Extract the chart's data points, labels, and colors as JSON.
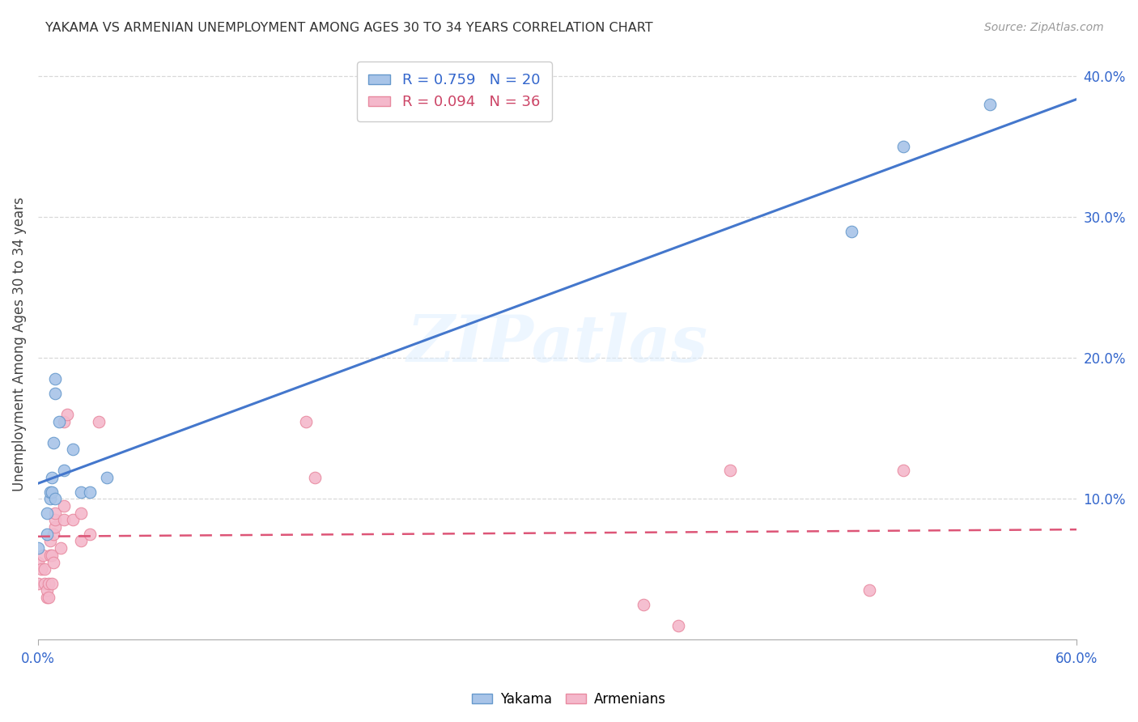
{
  "title": "YAKAMA VS ARMENIAN UNEMPLOYMENT AMONG AGES 30 TO 34 YEARS CORRELATION CHART",
  "source": "Source: ZipAtlas.com",
  "ylabel": "Unemployment Among Ages 30 to 34 years",
  "xlim": [
    0.0,
    0.6
  ],
  "ylim": [
    -0.02,
    0.44
  ],
  "plot_ylim": [
    0.0,
    0.42
  ],
  "xticks": [
    0.0,
    0.6
  ],
  "xtick_labels": [
    "0.0%",
    "60.0%"
  ],
  "yticks_left": [],
  "yticks_right": [
    0.1,
    0.2,
    0.3,
    0.4
  ],
  "ytick_right_labels": [
    "10.0%",
    "20.0%",
    "30.0%",
    "40.0%"
  ],
  "grid_color": "#d8d8d8",
  "background_color": "#ffffff",
  "watermark_text": "ZIPatlas",
  "yakama_color": "#a8c4e8",
  "armenian_color": "#f4b8cb",
  "yakama_edge_color": "#6699cc",
  "armenian_edge_color": "#e88aa0",
  "yakama_line_color": "#4477cc",
  "armenian_line_color": "#dd5577",
  "R_yakama": 0.759,
  "N_yakama": 20,
  "R_armenian": 0.094,
  "N_armenian": 36,
  "yakama_x": [
    0.0,
    0.005,
    0.005,
    0.007,
    0.007,
    0.008,
    0.008,
    0.009,
    0.01,
    0.01,
    0.01,
    0.012,
    0.015,
    0.02,
    0.025,
    0.03,
    0.04,
    0.47,
    0.5,
    0.55
  ],
  "yakama_y": [
    0.065,
    0.075,
    0.09,
    0.1,
    0.105,
    0.105,
    0.115,
    0.14,
    0.1,
    0.175,
    0.185,
    0.155,
    0.12,
    0.135,
    0.105,
    0.105,
    0.115,
    0.29,
    0.35,
    0.38
  ],
  "armenian_x": [
    0.0,
    0.0,
    0.002,
    0.003,
    0.004,
    0.004,
    0.005,
    0.005,
    0.006,
    0.006,
    0.007,
    0.007,
    0.008,
    0.008,
    0.009,
    0.009,
    0.01,
    0.01,
    0.01,
    0.013,
    0.015,
    0.015,
    0.015,
    0.017,
    0.02,
    0.025,
    0.025,
    0.03,
    0.035,
    0.155,
    0.16,
    0.35,
    0.37,
    0.4,
    0.48,
    0.5
  ],
  "armenian_y": [
    0.04,
    0.055,
    0.05,
    0.06,
    0.04,
    0.05,
    0.03,
    0.035,
    0.03,
    0.04,
    0.06,
    0.07,
    0.04,
    0.06,
    0.055,
    0.075,
    0.08,
    0.085,
    0.09,
    0.065,
    0.085,
    0.095,
    0.155,
    0.16,
    0.085,
    0.07,
    0.09,
    0.075,
    0.155,
    0.155,
    0.115,
    0.025,
    0.01,
    0.12,
    0.035,
    0.12
  ]
}
